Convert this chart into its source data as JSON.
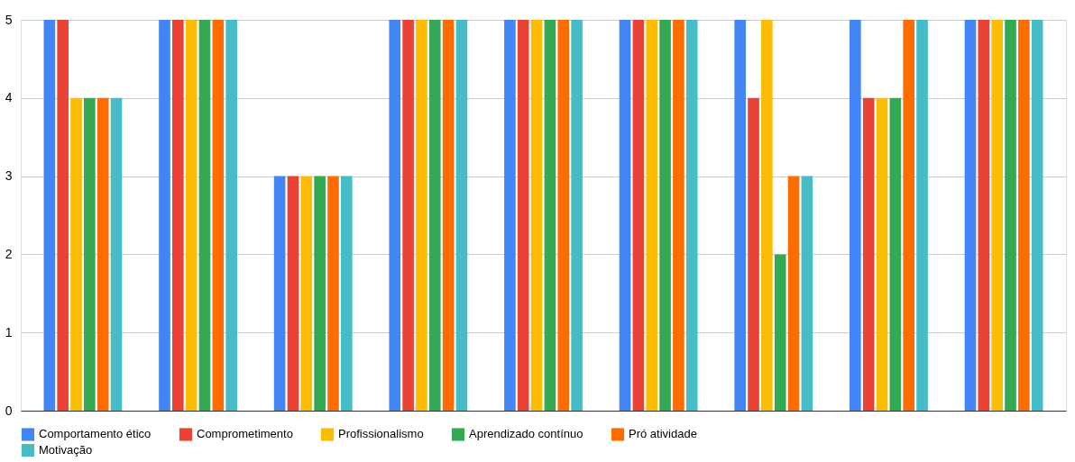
{
  "chart_data": {
    "type": "bar",
    "categories": [
      null,
      null,
      null,
      null,
      null,
      null,
      null,
      null,
      null
    ],
    "series": [
      {
        "name": "Comportamento ético",
        "color": "#4285f4",
        "values": [
          5,
          5,
          3,
          5,
          5,
          5,
          5,
          5,
          5
        ]
      },
      {
        "name": "Comprometimento",
        "color": "#ea4335",
        "values": [
          5,
          5,
          3,
          5,
          5,
          5,
          4,
          4,
          5
        ]
      },
      {
        "name": "Profissionalismo",
        "color": "#fbbc04",
        "values": [
          4,
          5,
          3,
          5,
          5,
          5,
          5,
          4,
          5
        ]
      },
      {
        "name": "Aprendizado contínuo",
        "color": "#34a853",
        "values": [
          4,
          5,
          3,
          5,
          5,
          5,
          2,
          4,
          5
        ]
      },
      {
        "name": "Pró atividade",
        "color": "#ff6d01",
        "values": [
          4,
          5,
          3,
          5,
          5,
          5,
          3,
          5,
          5
        ]
      },
      {
        "name": "Motivação",
        "color": "#46bdc6",
        "values": [
          4,
          5,
          3,
          5,
          5,
          5,
          3,
          5,
          5
        ]
      }
    ],
    "ylim": [
      0,
      5
    ],
    "yticks": [
      0,
      1,
      2,
      3,
      4,
      5
    ],
    "grid": "y",
    "legend": "bottom",
    "tick_labels": "y"
  }
}
